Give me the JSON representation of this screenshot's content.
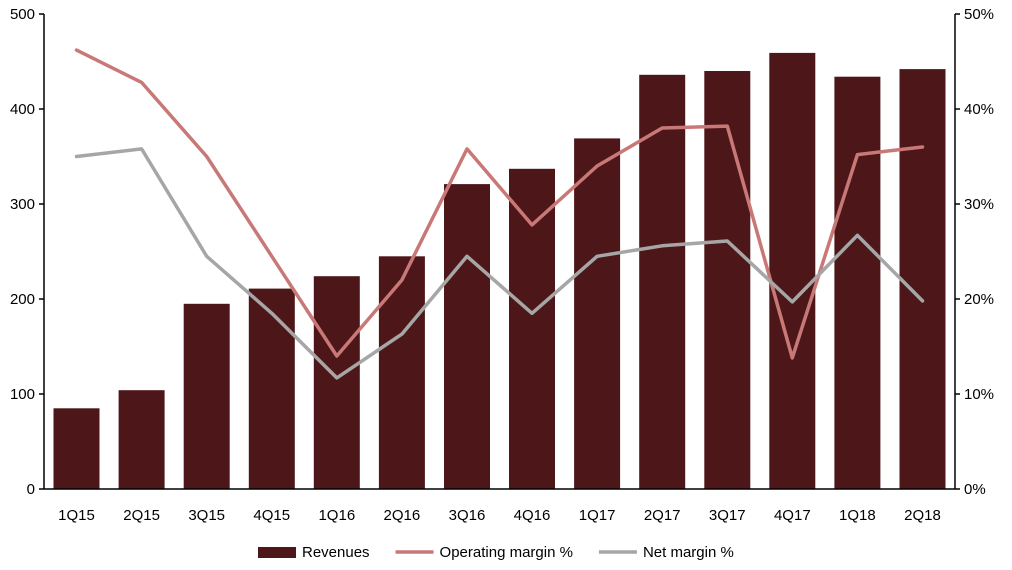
{
  "chart_data": {
    "type": "bar",
    "title": "",
    "categories": [
      "1Q15",
      "2Q15",
      "3Q15",
      "4Q15",
      "1Q16",
      "2Q16",
      "3Q16",
      "4Q16",
      "1Q17",
      "2Q17",
      "3Q17",
      "4Q17",
      "1Q18",
      "2Q18"
    ],
    "series": [
      {
        "name": "Revenues",
        "type": "bar",
        "axis": "left",
        "color": "#4d1719",
        "values": [
          85,
          104,
          195,
          211,
          224,
          245,
          321,
          337,
          369,
          436,
          440,
          459,
          434,
          442
        ]
      },
      {
        "name": "Operating margin %",
        "type": "line",
        "axis": "right",
        "color": "#c97878",
        "values": [
          46.2,
          42.8,
          35.0,
          24.5,
          14.0,
          22.0,
          35.8,
          27.8,
          34.0,
          38.0,
          38.2,
          13.8,
          35.2,
          36.0
        ]
      },
      {
        "name": "Net margin %",
        "type": "line",
        "axis": "right",
        "color": "#a6a6a6",
        "values": [
          35.0,
          35.8,
          24.5,
          18.5,
          11.7,
          16.3,
          24.5,
          18.5,
          24.5,
          25.6,
          26.1,
          19.7,
          26.7,
          19.8
        ]
      }
    ],
    "y_left": {
      "min": 0,
      "max": 500,
      "ticks": [
        0,
        100,
        200,
        300,
        400,
        500
      ],
      "tick_labels": [
        "0",
        "100",
        "200",
        "300",
        "400",
        "500"
      ]
    },
    "y_right": {
      "min": 0,
      "max": 50,
      "ticks": [
        0,
        10,
        20,
        30,
        40,
        50
      ],
      "tick_labels": [
        "0%",
        "10%",
        "20%",
        "30%",
        "40%",
        "50%"
      ]
    },
    "grid": false,
    "legend_position": "bottom"
  }
}
